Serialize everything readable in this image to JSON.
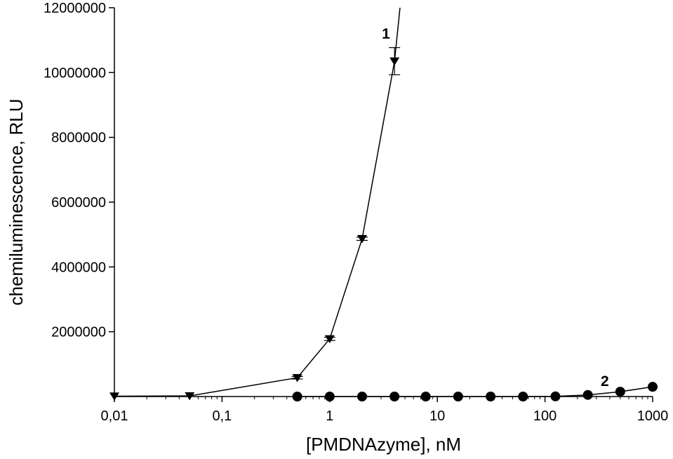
{
  "chart_data": {
    "type": "line",
    "xlabel": "[PMDNAzyme], nM",
    "ylabel": "chemiluminescence, RLU",
    "xscale": "log",
    "xlim": [
      0.01,
      1000
    ],
    "ylim": [
      0,
      12000000
    ],
    "x_ticks": [
      0.01,
      0.1,
      1,
      10,
      100,
      1000
    ],
    "x_tick_labels": [
      "0,01",
      "0,1",
      "1",
      "10",
      "100",
      "1000"
    ],
    "y_ticks": [
      2000000,
      4000000,
      6000000,
      8000000,
      10000000,
      12000000
    ],
    "y_tick_labels": [
      "2000000",
      "4000000",
      "6000000",
      "8000000",
      "10000000",
      "12000000"
    ],
    "grid": false,
    "series": [
      {
        "name": "1",
        "marker": "triangle-down",
        "color": "#000000",
        "x": [
          0.01,
          0.05,
          0.5,
          1,
          2,
          4
        ],
        "y": [
          10000,
          20000,
          580000,
          1780000,
          4870000,
          10350000
        ],
        "error": [
          0,
          0,
          40000,
          50000,
          50000,
          420000
        ],
        "curve_end": {
          "x": 4.5,
          "y": 12000000
        }
      },
      {
        "name": "2",
        "marker": "circle",
        "color": "#000000",
        "x": [
          0.5,
          1,
          2,
          4,
          7.8,
          15.6,
          31.25,
          62.5,
          125,
          250,
          500,
          1000
        ],
        "y": [
          0,
          0,
          0,
          0,
          0,
          0,
          0,
          0,
          5000,
          50000,
          150000,
          300000
        ]
      }
    ]
  }
}
